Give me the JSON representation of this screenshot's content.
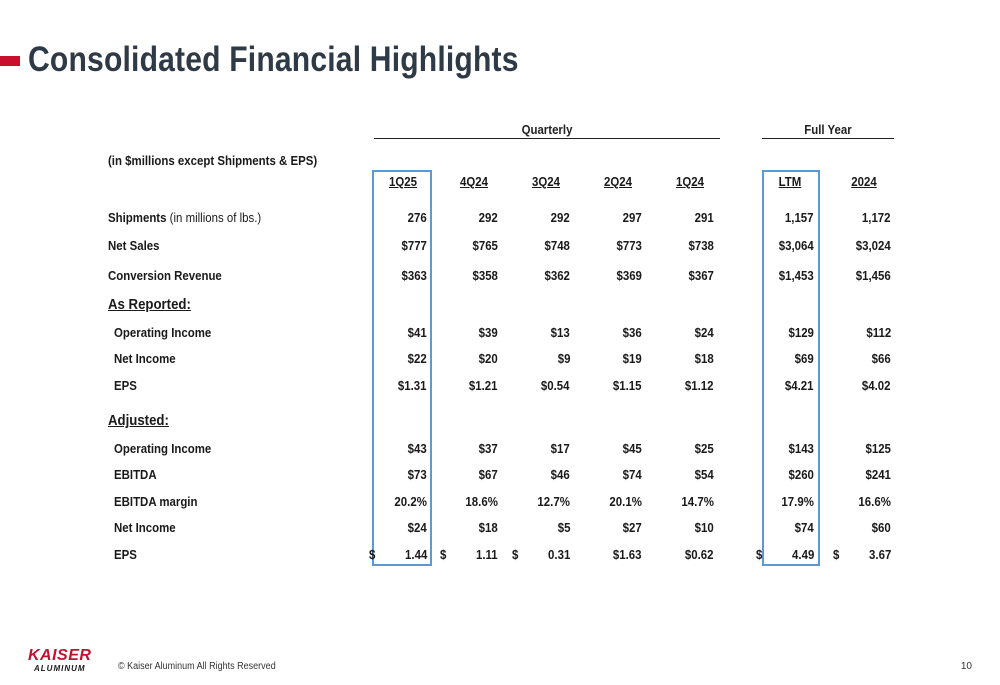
{
  "title": "Consolidated Financial Highlights",
  "groups": {
    "quarterly": "Quarterly",
    "full_year": "Full Year"
  },
  "units_note": "(in $millions except Shipments & EPS)",
  "columns": [
    "1Q25",
    "4Q24",
    "3Q24",
    "2Q24",
    "1Q24",
    "LTM",
    "2024"
  ],
  "sections": {
    "as_reported": "As Reported:",
    "adjusted": "Adjusted:"
  },
  "rows": [
    {
      "label": "Shipments",
      "sub": " (in millions of lbs.)",
      "values": [
        "276",
        "292",
        "292",
        "297",
        "291",
        "1,157",
        "1,172"
      ]
    },
    {
      "label": "Net Sales",
      "values": [
        "$777",
        "$765",
        "$748",
        "$773",
        "$738",
        "$3,064",
        "$3,024"
      ]
    },
    {
      "label": "Conversion Revenue",
      "values": [
        "$363",
        "$358",
        "$362",
        "$369",
        "$367",
        "$1,453",
        "$1,456"
      ]
    },
    {
      "label": "Operating Income",
      "values": [
        "$41",
        "$39",
        "$13",
        "$36",
        "$24",
        "$129",
        "$112"
      ]
    },
    {
      "label": "Net Income",
      "values": [
        "$22",
        "$20",
        "$9",
        "$19",
        "$18",
        "$69",
        "$66"
      ]
    },
    {
      "label": "EPS",
      "values": [
        "$1.31",
        "$1.21",
        "$0.54",
        "$1.15",
        "$1.12",
        "$4.21",
        "$4.02"
      ]
    },
    {
      "label": "Operating Income",
      "values": [
        "$43",
        "$37",
        "$17",
        "$45",
        "$25",
        "$143",
        "$125"
      ]
    },
    {
      "label": "EBITDA",
      "values": [
        "$73",
        "$67",
        "$46",
        "$74",
        "$54",
        "$260",
        "$241"
      ]
    },
    {
      "label": "EBITDA margin",
      "values": [
        "20.2%",
        "18.6%",
        "12.7%",
        "20.1%",
        "14.7%",
        "17.9%",
        "16.6%"
      ]
    },
    {
      "label": "Net Income",
      "values": [
        "$24",
        "$18",
        "$5",
        "$27",
        "$10",
        "$74",
        "$60"
      ]
    },
    {
      "label": "EPS",
      "values": [
        "1.44",
        "1.11",
        "0.31",
        "$1.63",
        "$0.62",
        "4.49",
        "3.67"
      ],
      "currency": [
        "$",
        "$",
        "$",
        "",
        "",
        "$",
        "$"
      ]
    }
  ],
  "footer": {
    "logo_top": "KAISER",
    "logo_bottom": "ALUMINUM",
    "copyright": "© Kaiser Aluminum All Rights Reserved",
    "page_number": "10"
  },
  "colors": {
    "accent": "#c8102e",
    "title": "#2e3a45",
    "highlight_box": "#5b9bd5"
  }
}
